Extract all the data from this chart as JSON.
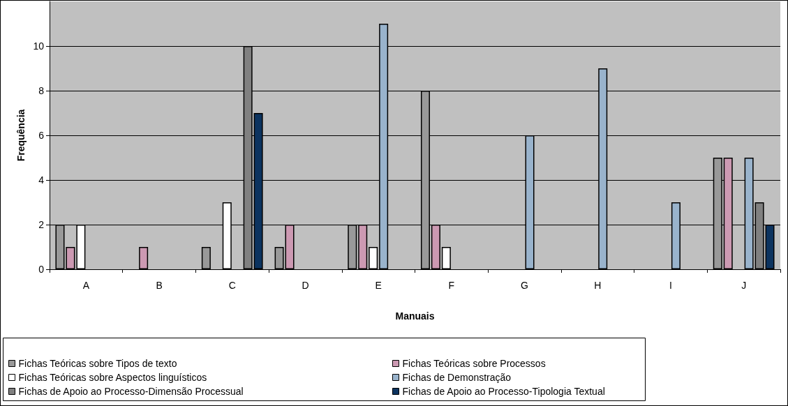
{
  "chart_data": {
    "type": "bar",
    "xlabel": "Manuais",
    "ylabel": "Frequência",
    "categories": [
      "A",
      "B",
      "C",
      "D",
      "E",
      "F",
      "G",
      "H",
      "I",
      "J"
    ],
    "series": [
      {
        "name": "Fichas Teóricas sobre Tipos de texto",
        "color": "#999999",
        "values": [
          2,
          null,
          1,
          1,
          2,
          8,
          null,
          null,
          null,
          5
        ]
      },
      {
        "name": "Fichas Teóricas sobre Processos",
        "color": "#cc99b2",
        "values": [
          1,
          1,
          null,
          2,
          2,
          2,
          null,
          null,
          null,
          5
        ]
      },
      {
        "name": "Fichas Teóricas sobre Aspectos linguísticos",
        "color": "#ffffff",
        "values": [
          2,
          null,
          3,
          null,
          1,
          1,
          null,
          null,
          null,
          null
        ]
      },
      {
        "name": "Fichas de Demonstração",
        "color": "#99b3cc",
        "values": [
          null,
          null,
          null,
          null,
          11,
          null,
          6,
          9,
          3,
          5
        ]
      },
      {
        "name": "Fichas de Apoio ao Processo-Dimensão Processual",
        "color": "#808080",
        "values": [
          null,
          null,
          10,
          null,
          null,
          null,
          null,
          null,
          null,
          3
        ]
      },
      {
        "name": "Fichas de Apoio ao Processo-Tipologia Textual",
        "color": "#0c335f",
        "values": [
          null,
          null,
          7,
          null,
          null,
          null,
          null,
          null,
          null,
          2
        ]
      }
    ],
    "ylim": [
      0,
      12
    ],
    "yticks": [
      0,
      2,
      4,
      6,
      8,
      10
    ],
    "grid": "y",
    "legend": "bottom"
  }
}
